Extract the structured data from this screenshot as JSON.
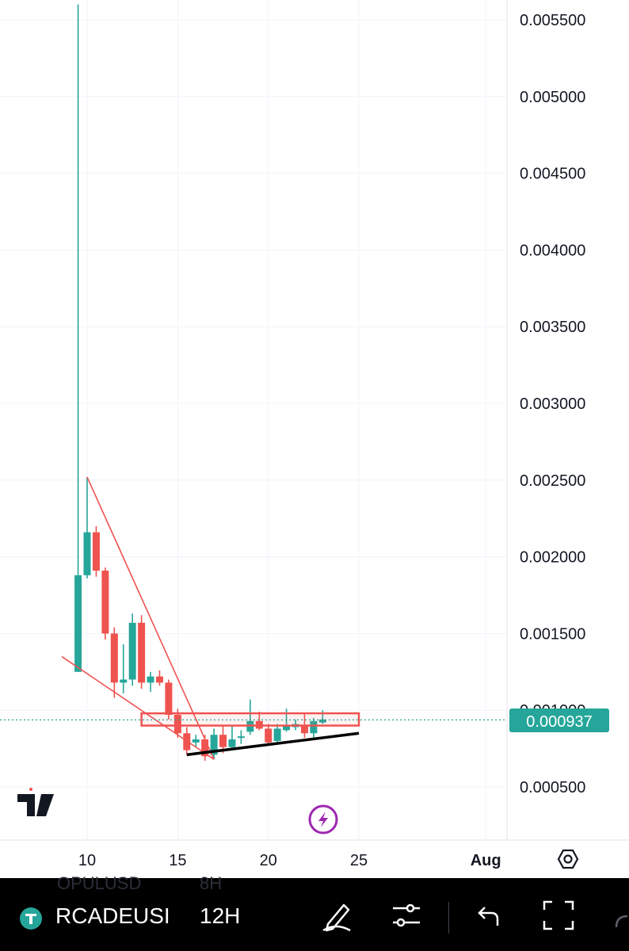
{
  "chart_data": {
    "type": "candlestick",
    "ylim": [
      0.00025,
      0.0056
    ],
    "y_ticks": [
      "0.000500",
      "0.001000",
      "0.001500",
      "0.002000",
      "0.002500",
      "0.003000",
      "0.003500",
      "0.004000",
      "0.004500",
      "0.005000",
      "0.005500"
    ],
    "x_ticks": [
      {
        "label": "10",
        "day": 10
      },
      {
        "label": "15",
        "day": 15
      },
      {
        "label": "20",
        "day": 20
      },
      {
        "label": "25",
        "day": 25
      },
      {
        "label": "Aug",
        "day": 32
      }
    ],
    "candles": [
      {
        "day": 9.5,
        "o": 0.00125,
        "h": 0.0056,
        "l": 0.00125,
        "c": 0.00188
      },
      {
        "day": 10.0,
        "o": 0.00188,
        "h": 0.00252,
        "l": 0.00186,
        "c": 0.00216
      },
      {
        "day": 10.5,
        "o": 0.00216,
        "h": 0.0022,
        "l": 0.00187,
        "c": 0.00191
      },
      {
        "day": 11.0,
        "o": 0.00191,
        "h": 0.00193,
        "l": 0.00146,
        "c": 0.0015
      },
      {
        "day": 11.5,
        "o": 0.0015,
        "h": 0.00154,
        "l": 0.00108,
        "c": 0.00118
      },
      {
        "day": 12.0,
        "o": 0.00118,
        "h": 0.00143,
        "l": 0.00111,
        "c": 0.0012
      },
      {
        "day": 12.5,
        "o": 0.0012,
        "h": 0.00163,
        "l": 0.00116,
        "c": 0.00157
      },
      {
        "day": 13.0,
        "o": 0.00157,
        "h": 0.00162,
        "l": 0.00114,
        "c": 0.00118
      },
      {
        "day": 13.5,
        "o": 0.00118,
        "h": 0.00125,
        "l": 0.00112,
        "c": 0.00122
      },
      {
        "day": 14.0,
        "o": 0.00122,
        "h": 0.00126,
        "l": 0.00116,
        "c": 0.00118
      },
      {
        "day": 14.5,
        "o": 0.00118,
        "h": 0.0012,
        "l": 0.00094,
        "c": 0.00097
      },
      {
        "day": 15.0,
        "o": 0.00097,
        "h": 0.00101,
        "l": 0.00082,
        "c": 0.00085
      },
      {
        "day": 15.5,
        "o": 0.00085,
        "h": 0.00089,
        "l": 0.00071,
        "c": 0.00074
      },
      {
        "day": 16.0,
        "o": 0.00079,
        "h": 0.00084,
        "l": 0.00076,
        "c": 0.00081
      },
      {
        "day": 16.5,
        "o": 0.00081,
        "h": 0.00084,
        "l": 0.00067,
        "c": 0.0007
      },
      {
        "day": 17.0,
        "o": 0.00071,
        "h": 0.00088,
        "l": 0.00068,
        "c": 0.00084
      },
      {
        "day": 17.5,
        "o": 0.00084,
        "h": 0.0009,
        "l": 0.00072,
        "c": 0.00076
      },
      {
        "day": 18.0,
        "o": 0.00076,
        "h": 0.0009,
        "l": 0.00074,
        "c": 0.00081
      },
      {
        "day": 18.5,
        "o": 0.00082,
        "h": 0.00087,
        "l": 0.00078,
        "c": 0.00083
      },
      {
        "day": 19.0,
        "o": 0.00086,
        "h": 0.00107,
        "l": 0.00084,
        "c": 0.00093
      },
      {
        "day": 19.5,
        "o": 0.00093,
        "h": 0.00099,
        "l": 0.00087,
        "c": 0.00088
      },
      {
        "day": 20.0,
        "o": 0.00088,
        "h": 0.00091,
        "l": 0.00077,
        "c": 0.00079
      },
      {
        "day": 20.5,
        "o": 0.0008,
        "h": 0.00091,
        "l": 0.00079,
        "c": 0.00088
      },
      {
        "day": 21.0,
        "o": 0.00087,
        "h": 0.00101,
        "l": 0.00086,
        "c": 0.0009
      },
      {
        "day": 21.5,
        "o": 0.00089,
        "h": 0.00094,
        "l": 0.00087,
        "c": 0.00091
      },
      {
        "day": 22.0,
        "o": 0.0009,
        "h": 0.00098,
        "l": 0.00082,
        "c": 0.00085
      },
      {
        "day": 22.5,
        "o": 0.00085,
        "h": 0.00095,
        "l": 0.00081,
        "c": 0.00093
      },
      {
        "day": 23.0,
        "o": 0.00092,
        "h": 0.001,
        "l": 0.00091,
        "c": 0.00094
      }
    ],
    "current_price": "0.000937",
    "current_value": 0.000937,
    "colors": {
      "up": "#26a69a",
      "down": "#ef5350",
      "drawing": "#ef5350",
      "trend": "#000000",
      "grid": "#f0f3fa"
    },
    "drawings": {
      "wedge_upper": [
        [
          10.0,
          0.00252
        ],
        [
          17.0,
          0.00068
        ]
      ],
      "wedge_lower": [
        [
          8.6,
          0.00135
        ],
        [
          17.0,
          0.00068
        ]
      ],
      "resistance_box": {
        "day_start": 13.0,
        "day_end": 25.0,
        "y_top": 0.00098,
        "y_bottom": 0.0009
      },
      "support_line": [
        [
          15.5,
          0.00071
        ],
        [
          25.0,
          0.00085
        ]
      ]
    }
  },
  "toolbar": {
    "symbol": "RCADEUSI",
    "interval": "12H",
    "ghost_symbol": "OPULUSD",
    "ghost_interval": "8H"
  },
  "icons": [
    "tradingview-logo-icon",
    "lightning-icon",
    "settings-hexagon-icon",
    "tether-icon",
    "pen-icon",
    "sliders-icon",
    "undo-icon",
    "fullscreen-icon"
  ]
}
